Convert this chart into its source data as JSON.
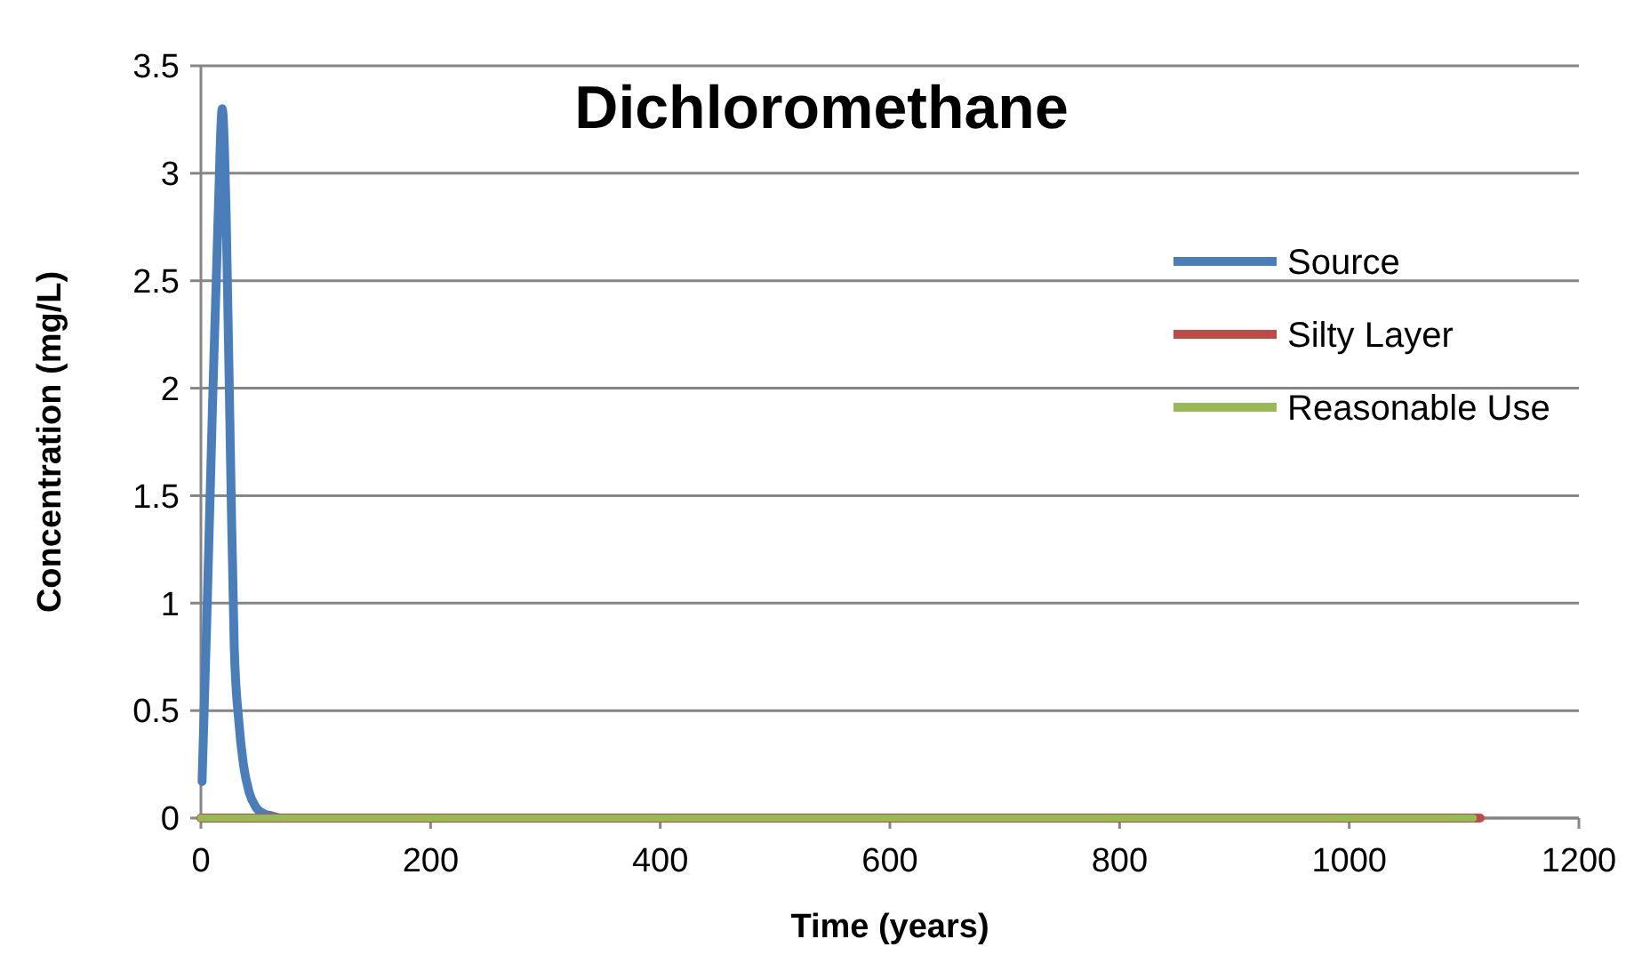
{
  "chart_data": {
    "type": "line",
    "title": "Dichloromethane",
    "xlabel": "Time (years)",
    "ylabel": "Concentration (mg/L)",
    "xlim": [
      0,
      1200
    ],
    "xticks": [
      0,
      200,
      400,
      600,
      800,
      1000,
      1200
    ],
    "ylim": [
      0,
      3.5
    ],
    "yticks": [
      0,
      0.5,
      1,
      1.5,
      2,
      2.5,
      3,
      3.5
    ],
    "grid": "y",
    "legend": "right",
    "marker": "none",
    "line_style": "solid",
    "series": [
      {
        "name": "Source",
        "color": "#4a7ebb",
        "x": [
          1,
          5,
          10,
          15,
          18.6,
          22,
          26,
          29,
          33,
          37,
          42,
          48,
          55,
          62,
          70,
          100
        ],
        "values": [
          0.17,
          0.9,
          1.9,
          2.8,
          3.3,
          2.8,
          1.6,
          0.8,
          0.45,
          0.25,
          0.12,
          0.05,
          0.02,
          0.01,
          0,
          0
        ]
      },
      {
        "name": "Silty Layer",
        "color": "#be4b48",
        "x": [
          0,
          1114
        ],
        "values": [
          0,
          0
        ]
      },
      {
        "name": "Reasonable Use",
        "color": "#98b954",
        "x": [
          0,
          1108
        ],
        "values": [
          0,
          0
        ]
      }
    ]
  }
}
